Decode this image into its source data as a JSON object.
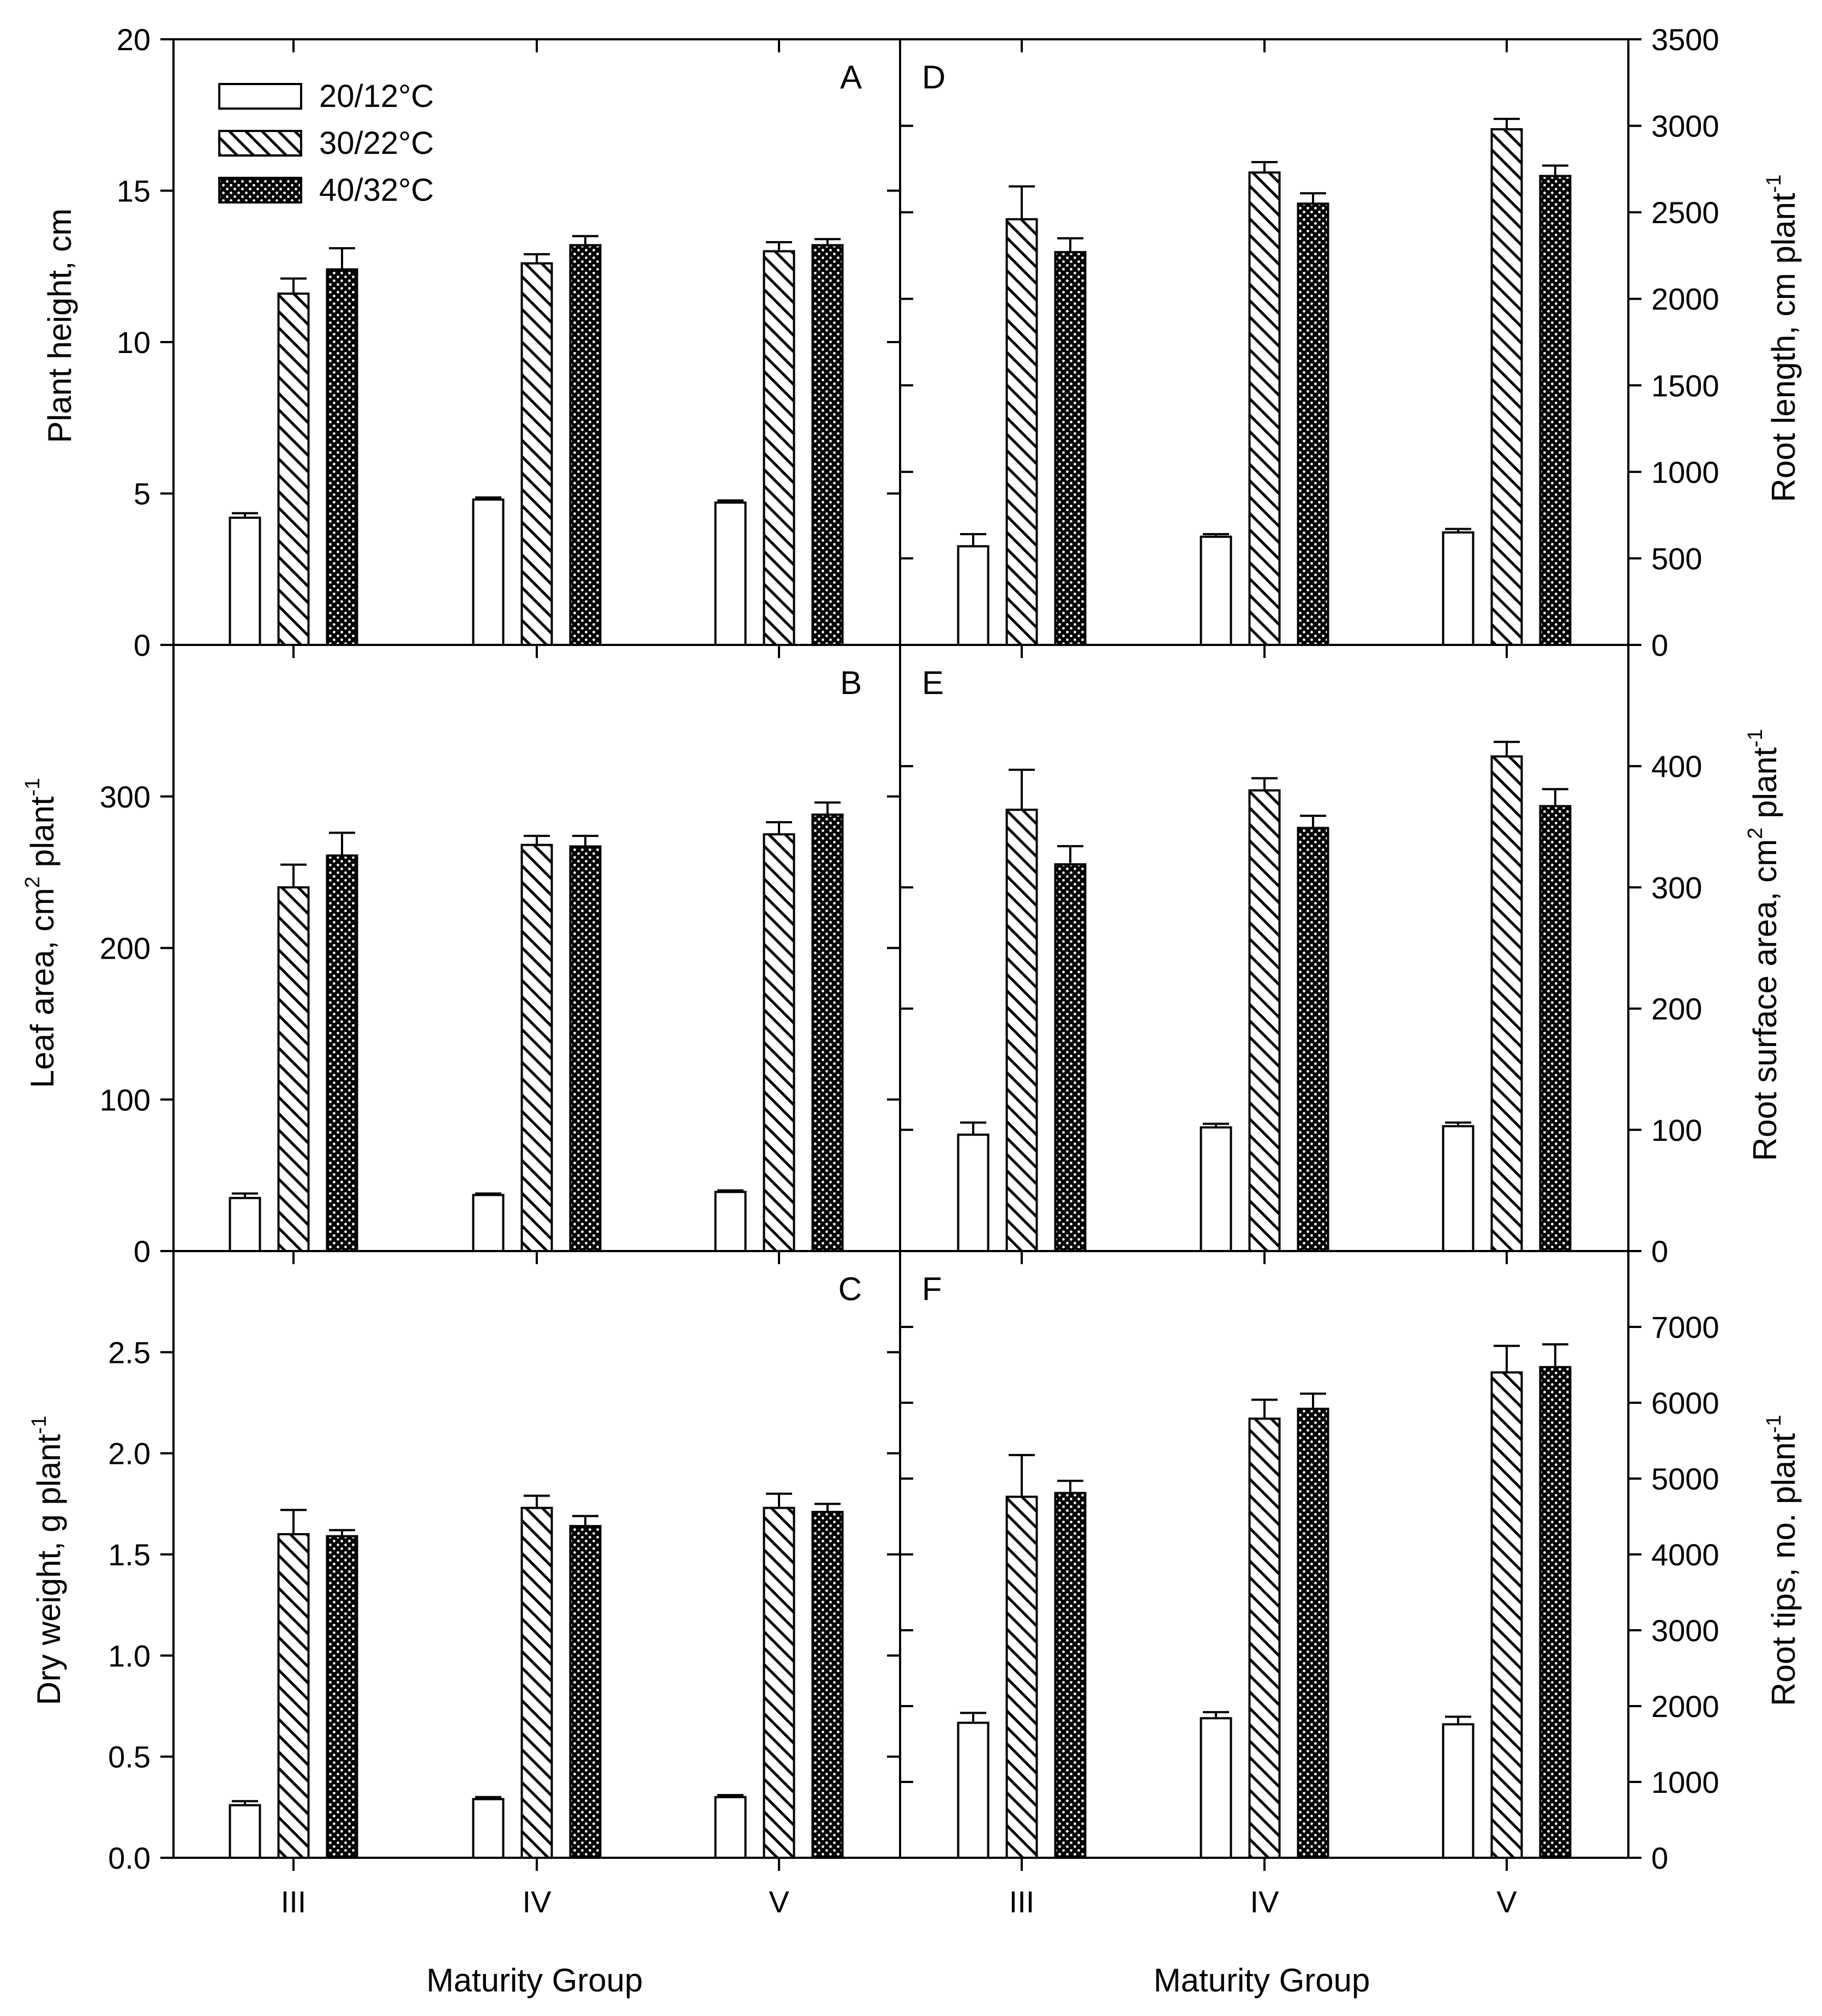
{
  "chart_data": [
    {
      "type": "bar",
      "panel": "A",
      "side": "left",
      "categories": [
        "III",
        "IV",
        "V"
      ],
      "ylabel": "Plant height, cm",
      "ylim": [
        0,
        20
      ],
      "yticks": [
        0,
        5,
        10,
        15,
        20
      ],
      "series": [
        {
          "name": "20/12°C",
          "values": [
            4.2,
            4.8,
            4.7
          ],
          "errors": [
            0.15,
            0.07,
            0.07
          ]
        },
        {
          "name": "30/22°C",
          "values": [
            11.6,
            12.6,
            13.0
          ],
          "errors": [
            0.5,
            0.3,
            0.3
          ]
        },
        {
          "name": "40/32°C",
          "values": [
            12.4,
            13.2,
            13.2
          ],
          "errors": [
            0.7,
            0.3,
            0.2
          ]
        }
      ]
    },
    {
      "type": "bar",
      "panel": "B",
      "side": "left",
      "categories": [
        "III",
        "IV",
        "V"
      ],
      "ylabel": "Leaf area, cm² plant⁻¹",
      "ylim": [
        0,
        400
      ],
      "yticks": [
        0,
        100,
        200,
        300
      ],
      "series": [
        {
          "name": "20/12°C",
          "values": [
            35,
            37,
            39
          ],
          "errors": [
            3,
            1,
            1
          ]
        },
        {
          "name": "30/22°C",
          "values": [
            240,
            268,
            275
          ],
          "errors": [
            15,
            6,
            8
          ]
        },
        {
          "name": "40/32°C",
          "values": [
            261,
            267,
            288
          ],
          "errors": [
            15,
            7,
            8
          ]
        }
      ]
    },
    {
      "type": "bar",
      "panel": "C",
      "side": "left",
      "categories": [
        "III",
        "IV",
        "V"
      ],
      "xlabel": "Maturity Group",
      "ylabel": "Dry weight, g plant⁻¹",
      "ylim": [
        0,
        3.0
      ],
      "yticks": [
        0.0,
        0.5,
        1.0,
        1.5,
        2.0,
        2.5
      ],
      "ytick_labels": [
        "0.0",
        "0.5",
        "1.0",
        "1.5",
        "2.0",
        "2.5"
      ],
      "series": [
        {
          "name": "20/12°C",
          "values": [
            0.26,
            0.29,
            0.3
          ],
          "errors": [
            0.02,
            0.01,
            0.01
          ]
        },
        {
          "name": "30/22°C",
          "values": [
            1.6,
            1.73,
            1.73
          ],
          "errors": [
            0.12,
            0.06,
            0.07
          ]
        },
        {
          "name": "40/32°C",
          "values": [
            1.59,
            1.64,
            1.71
          ],
          "errors": [
            0.03,
            0.05,
            0.04
          ]
        }
      ]
    },
    {
      "type": "bar",
      "panel": "D",
      "side": "right",
      "categories": [
        "III",
        "IV",
        "V"
      ],
      "ylabel": "Root length, cm plant⁻¹",
      "ylim": [
        0,
        3500
      ],
      "yticks": [
        0,
        500,
        1000,
        1500,
        2000,
        2500,
        3000,
        3500
      ],
      "series": [
        {
          "name": "20/12°C",
          "values": [
            570,
            625,
            650
          ],
          "errors": [
            70,
            15,
            20
          ]
        },
        {
          "name": "30/22°C",
          "values": [
            2460,
            2730,
            2980
          ],
          "errors": [
            190,
            60,
            60
          ]
        },
        {
          "name": "40/32°C",
          "values": [
            2270,
            2550,
            2710
          ],
          "errors": [
            80,
            60,
            60
          ]
        }
      ]
    },
    {
      "type": "bar",
      "panel": "E",
      "side": "right",
      "categories": [
        "III",
        "IV",
        "V"
      ],
      "ylabel": "Root surface area, cm² plant⁻¹",
      "ylim": [
        0,
        500
      ],
      "yticks": [
        0,
        100,
        200,
        300,
        400
      ],
      "series": [
        {
          "name": "20/12°C",
          "values": [
            96,
            102,
            103
          ],
          "errors": [
            10,
            3,
            3
          ]
        },
        {
          "name": "30/22°C",
          "values": [
            364,
            380,
            408
          ],
          "errors": [
            33,
            10,
            12
          ]
        },
        {
          "name": "40/32°C",
          "values": [
            319,
            349,
            367
          ],
          "errors": [
            15,
            10,
            14
          ]
        }
      ]
    },
    {
      "type": "bar",
      "panel": "F",
      "side": "right",
      "categories": [
        "III",
        "IV",
        "V"
      ],
      "xlabel": "Maturity Group",
      "ylabel": "Root tips, no. plant⁻¹",
      "ylim": [
        0,
        8000
      ],
      "yticks": [
        0,
        1000,
        2000,
        3000,
        4000,
        5000,
        6000,
        7000
      ],
      "series": [
        {
          "name": "20/12°C",
          "values": [
            1780,
            1840,
            1760
          ],
          "errors": [
            130,
            80,
            100
          ]
        },
        {
          "name": "30/22°C",
          "values": [
            4760,
            5790,
            6400
          ],
          "errors": [
            550,
            250,
            350
          ]
        },
        {
          "name": "40/32°C",
          "values": [
            4810,
            5920,
            6470
          ],
          "errors": [
            160,
            200,
            300
          ]
        }
      ]
    }
  ],
  "legend": {
    "position": "top-left",
    "entries": [
      {
        "label": "20/12°C",
        "pattern": "open"
      },
      {
        "label": "30/22°C",
        "pattern": "diagonal-hatch"
      },
      {
        "label": "40/32°C",
        "pattern": "crosshatch"
      }
    ]
  },
  "axis_text": {
    "ylabel_A_main": "Plant height, cm",
    "ylabel_B_main": "Leaf area, cm",
    "ylabel_B_sup1": "2",
    "ylabel_B_rest": " plant",
    "ylabel_B_sup2": "-1",
    "ylabel_C_main": "Dry weight, g plant",
    "ylabel_C_sup": "-1",
    "ylabel_D_main": "Root length, cm plant",
    "ylabel_D_sup": "-1",
    "ylabel_E_main": "Root surface area, cm",
    "ylabel_E_sup1": "2",
    "ylabel_E_rest": " plant",
    "ylabel_E_sup2": "-1",
    "ylabel_F_main": "Root tips, no. plant",
    "ylabel_F_sup": "-1",
    "xlabel_left": "Maturity Group",
    "xlabel_right": "Maturity Group"
  }
}
